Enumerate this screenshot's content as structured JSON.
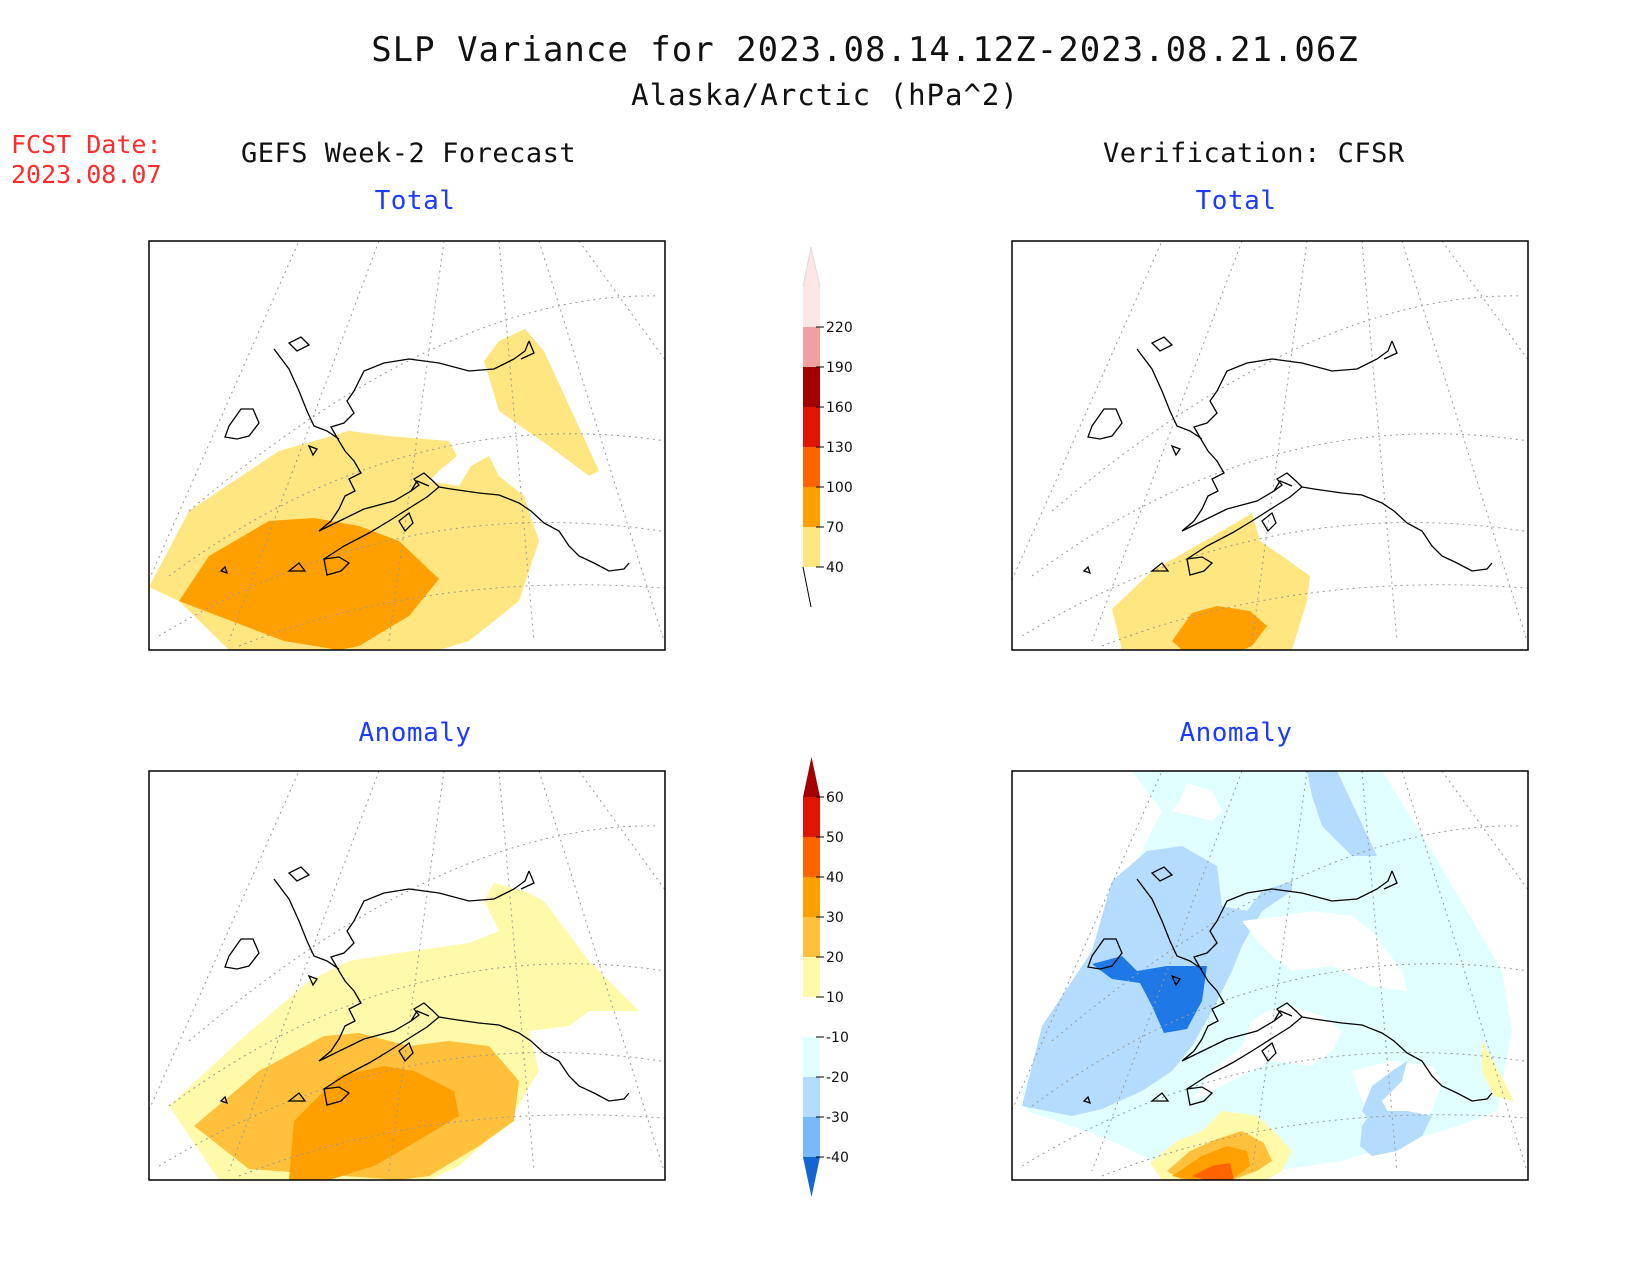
{
  "header": {
    "title": "SLP Variance for 2023.08.14.12Z-2023.08.21.06Z",
    "subtitle": "Alaska/Arctic (hPa^2)"
  },
  "forecast_date": {
    "label": "FCST Date:",
    "value": "2023.08.07"
  },
  "columns": {
    "left": "GEFS Week-2 Forecast",
    "right": "Verification: CFSR"
  },
  "panels": {
    "fcst_total": "Total",
    "verif_total": "Total",
    "fcst_anomaly": "Anomaly",
    "verif_anomaly": "Anomaly"
  },
  "colors": {
    "total_scale": [
      "#ffe680",
      "#ffa000",
      "#ff6400",
      "#e11400",
      "#a50000",
      "#f0a0a0",
      "#ffe6e6"
    ],
    "anomaly_scale": [
      "#1464d2",
      "#78b9fa",
      "#b4dcff",
      "#e1ffff",
      "#ffffff",
      "#fffaaa",
      "#ffc03c",
      "#ffa000",
      "#ff6400",
      "#e11400",
      "#a50000"
    ],
    "title_blue": "#1b3bff",
    "fcst_red": "#ff2a2a"
  },
  "colorbars": {
    "total_ticks": [
      "40",
      "70",
      "100",
      "130",
      "160",
      "190",
      "220"
    ],
    "anomaly_ticks": [
      "-40",
      "-30",
      "-20",
      "-10",
      "10",
      "20",
      "30",
      "40",
      "50",
      "60"
    ]
  }
}
